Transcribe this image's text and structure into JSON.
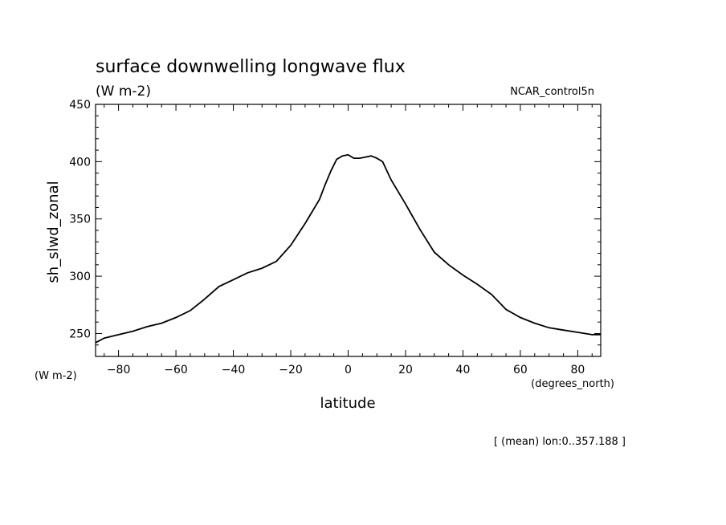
{
  "chart_data": {
    "type": "line",
    "title": "surface downwelling longwave flux",
    "subtitle": "(W m-2)",
    "dataset_label": "NCAR_control5n",
    "ylabel": "sh_slwd_zonal",
    "y_units": "(W m-2)",
    "xlabel": "latitude",
    "x_units": "(degrees_north)",
    "footnote": "[ (mean) lon:0..357.188 ]",
    "xlim": [
      -88,
      88
    ],
    "ylim": [
      230,
      450
    ],
    "x_ticks": [
      -80,
      -60,
      -40,
      -20,
      0,
      20,
      40,
      60,
      80
    ],
    "y_ticks": [
      250,
      300,
      350,
      400,
      450
    ],
    "grid": false,
    "series": [
      {
        "x": [
          -88,
          -85,
          -80,
          -75,
          -70,
          -65,
          -60,
          -55,
          -50,
          -45,
          -40,
          -35,
          -30,
          -25,
          -20,
          -15,
          -10,
          -8,
          -6,
          -4,
          -2,
          0,
          2,
          4,
          6,
          8,
          10,
          12,
          15,
          20,
          25,
          30,
          35,
          40,
          45,
          50,
          55,
          60,
          65,
          70,
          75,
          80,
          85,
          88
        ],
        "y": [
          242,
          246,
          249,
          252,
          256,
          259,
          264,
          270,
          280,
          291,
          297,
          303,
          307,
          313,
          327,
          346,
          367,
          380,
          392,
          402,
          405,
          406,
          403,
          403,
          404,
          405,
          403,
          400,
          384,
          363,
          341,
          321,
          310,
          301,
          293,
          284,
          271,
          264,
          259,
          255,
          253,
          251,
          249,
          249
        ]
      }
    ]
  }
}
